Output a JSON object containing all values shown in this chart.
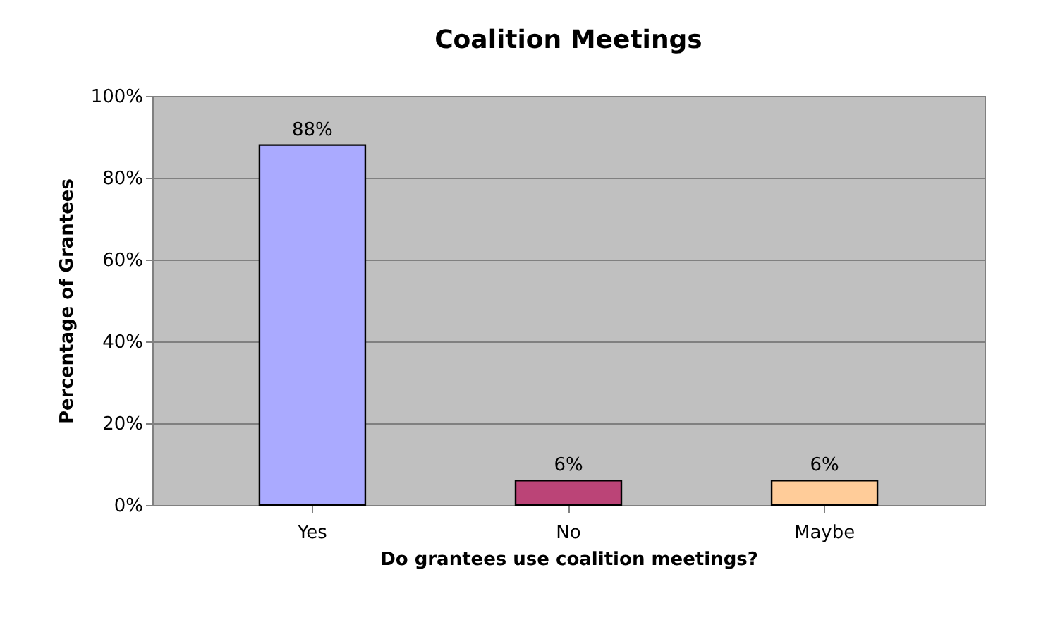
{
  "chart_data": {
    "type": "bar",
    "title": "Coalition Meetings",
    "categories": [
      "Yes",
      "No",
      "Maybe"
    ],
    "values": [
      88,
      6,
      6
    ],
    "colors": [
      "#aaaaff",
      "#bb4477",
      "#ffcc99"
    ],
    "value_labels": [
      "88%",
      "6%",
      "6%"
    ],
    "xlabel": "Do grantees use coalition meetings?",
    "ylabel": "Percentage of Grantees",
    "ylim": [
      0,
      100
    ],
    "yticks": [
      {
        "value": 0,
        "label": "0%"
      },
      {
        "value": 20,
        "label": "20%"
      },
      {
        "value": 40,
        "label": "40%"
      },
      {
        "value": 60,
        "label": "60%"
      },
      {
        "value": 80,
        "label": "80%"
      },
      {
        "value": 100,
        "label": "100%"
      }
    ],
    "grid": "y"
  }
}
